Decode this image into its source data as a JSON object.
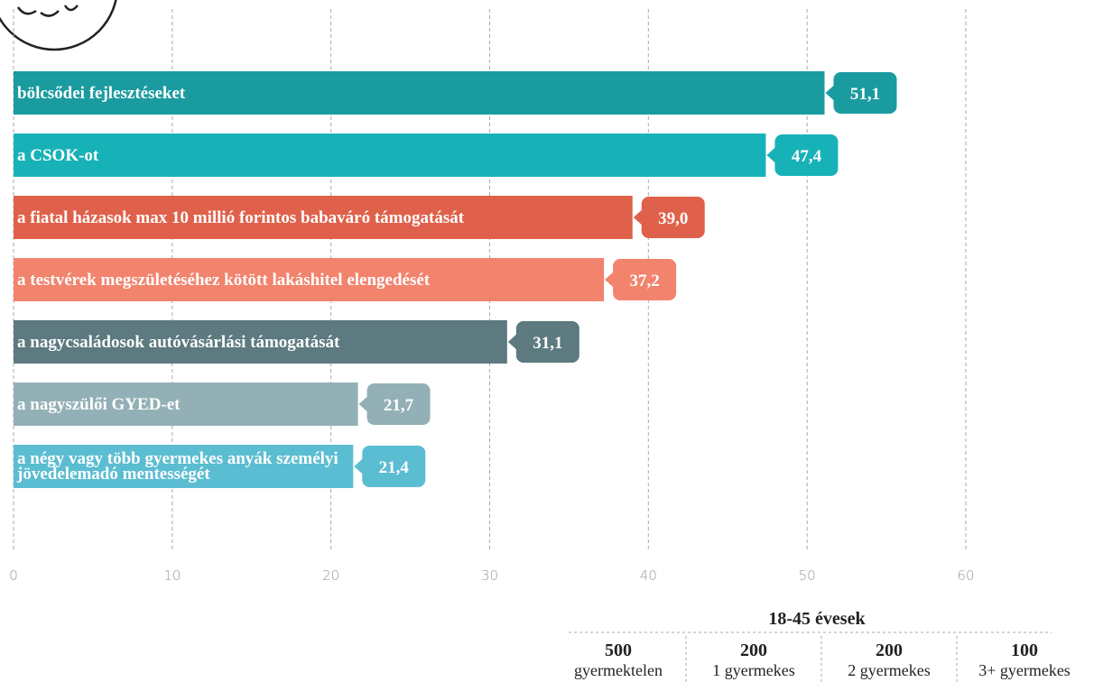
{
  "chart_data": {
    "type": "bar",
    "orientation": "horizontal",
    "categories": [
      "bölcsődei  fejlesztéseket",
      "a CSOK-ot",
      "a fiatal házasok max 10 millió forintos babaváró támogatását",
      "a testvérek megszületéséhez kötött lakáshitel elengedését",
      "a nagycsaládosok autóvásárlási támogatását",
      "a nagyszülői GYED-et",
      "a négy vagy több gyermekes anyák személyi jövedelemadó mentességét"
    ],
    "values": [
      51.1,
      47.4,
      39.0,
      37.2,
      31.1,
      21.7,
      21.4
    ],
    "value_labels": [
      "51,1",
      "47,4",
      "39,0",
      "37,2",
      "31,1",
      "21,7",
      "21,4"
    ],
    "colors": [
      "#1a9ba0",
      "#17b2b8",
      "#e0614b",
      "#f2836d",
      "#5c7a7f",
      "#93b0b6",
      "#5bbdd1"
    ],
    "xlim": [
      0,
      60
    ],
    "xticks": [
      0,
      10,
      20,
      30,
      40,
      50,
      60
    ],
    "grid": true
  },
  "sample": {
    "title": "18-45 évesek",
    "groups": [
      {
        "count": 500,
        "label": "gyermektelen"
      },
      {
        "count": 200,
        "label": "1 gyermekes"
      },
      {
        "count": 200,
        "label": "2 gyermekes"
      },
      {
        "count": 100,
        "label": "3+ gyermekes"
      }
    ]
  }
}
